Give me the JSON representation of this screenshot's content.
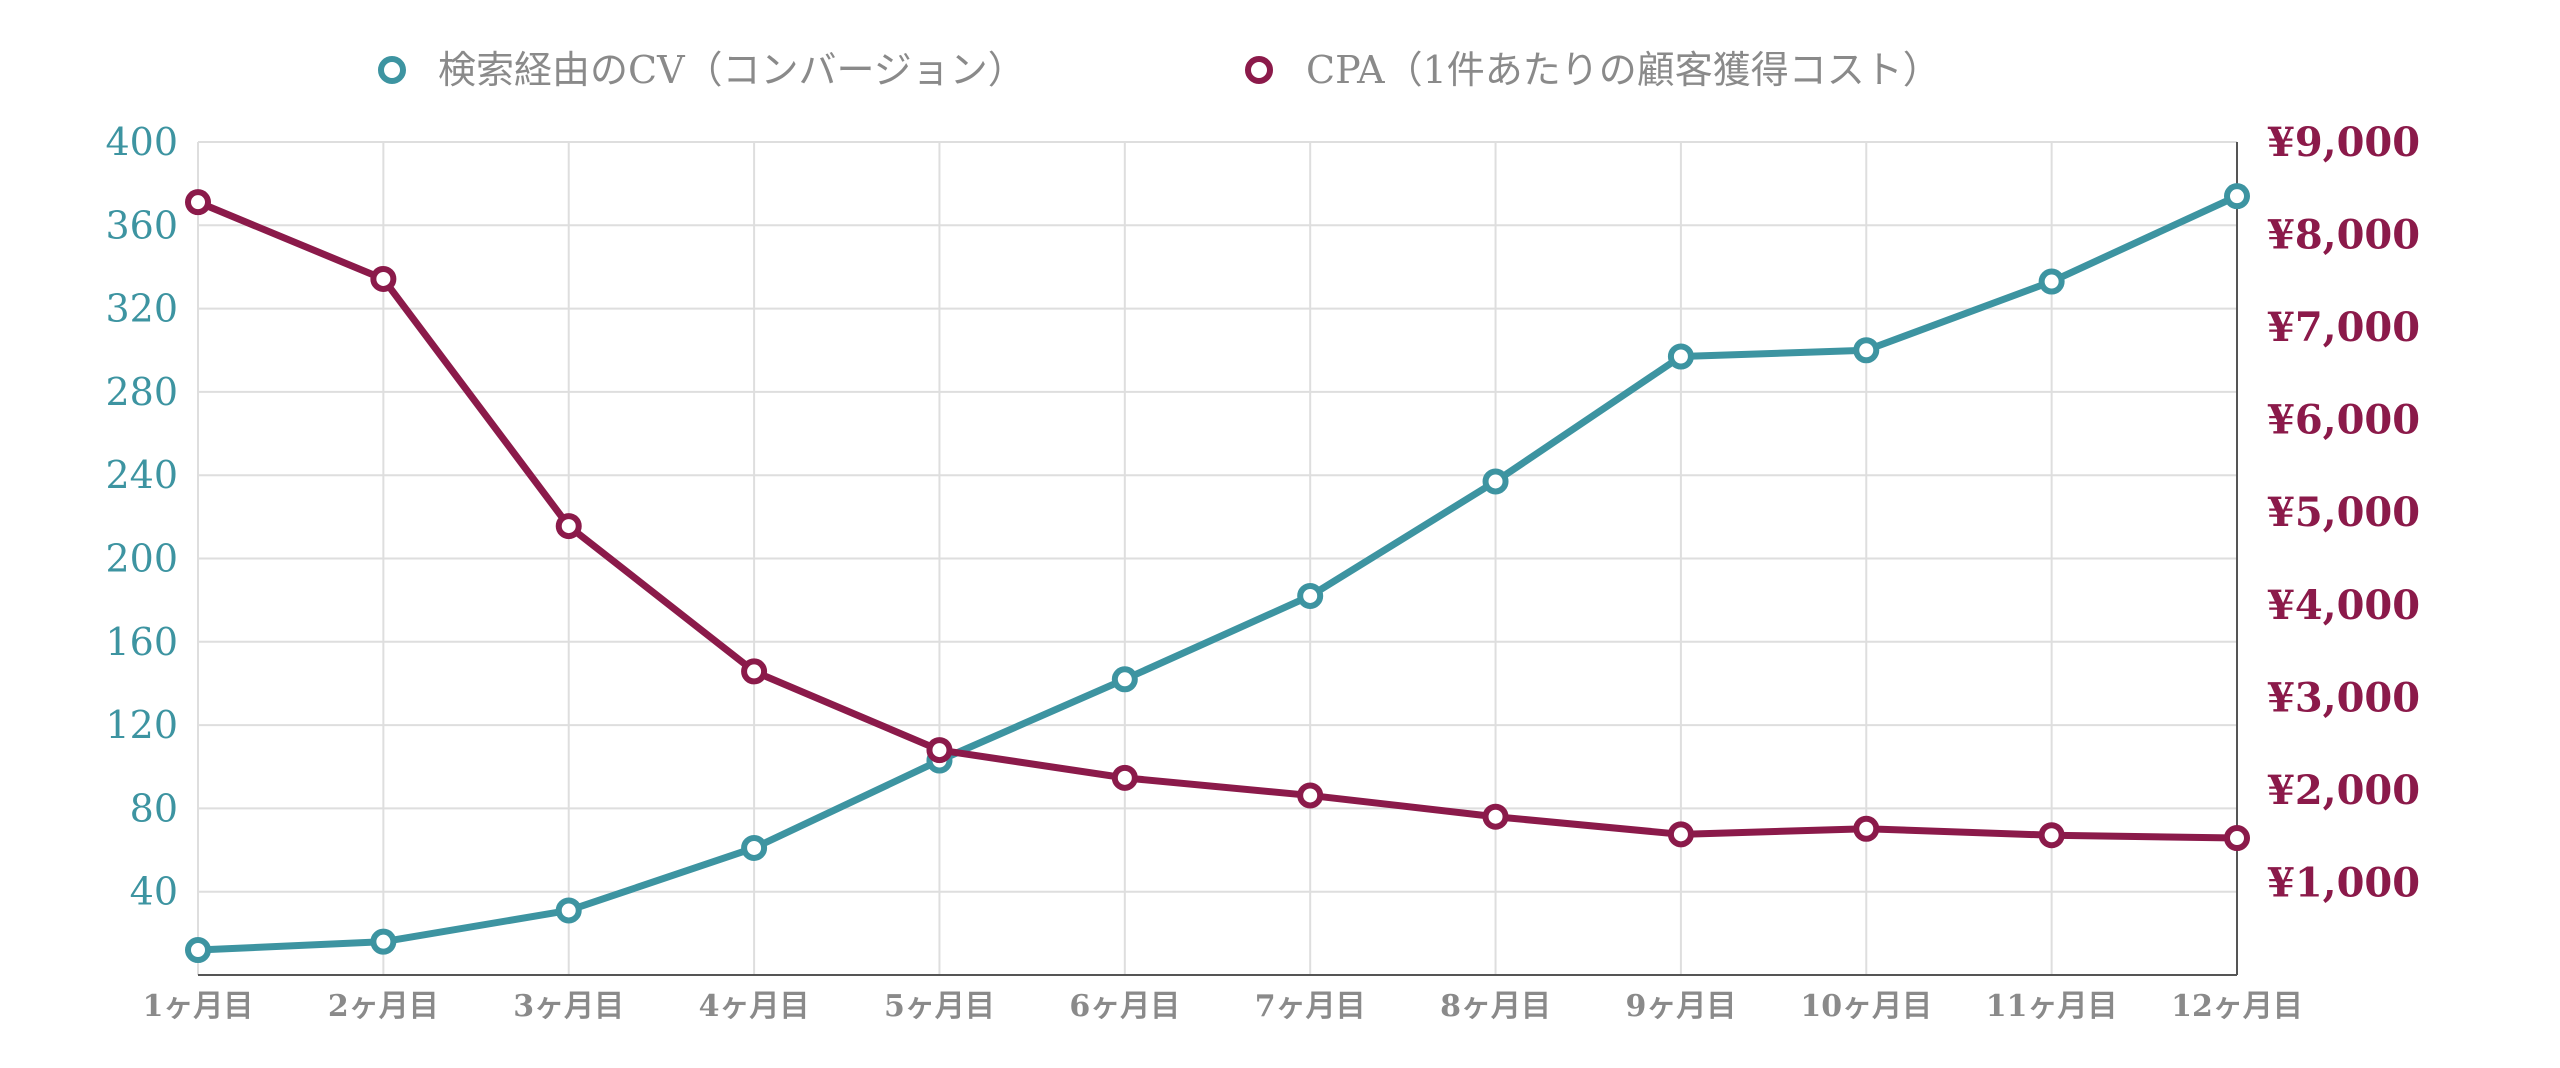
{
  "chart_data": {
    "type": "line",
    "categories": [
      "1ヶ月目",
      "2ヶ月目",
      "3ヶ月目",
      "4ヶ月目",
      "5ヶ月目",
      "6ヶ月目",
      "7ヶ月目",
      "8ヶ月目",
      "9ヶ月目",
      "10ヶ月目",
      "11ヶ月目",
      "12ヶ月目"
    ],
    "series": [
      {
        "name": "検索経由のCV（コンバージョン）",
        "axis": "left",
        "color": "#3d94a1",
        "values": [
          12,
          16,
          31,
          61,
          103,
          142,
          182,
          237,
          297,
          300,
          333,
          374
        ]
      },
      {
        "name": "CPA（1件あたりの顧客獲得コスト）",
        "axis": "right",
        "color": "#8b1a4a",
        "values": [
          8350,
          7520,
          4850,
          3280,
          2430,
          2130,
          1940,
          1710,
          1520,
          1580,
          1510,
          1480
        ]
      }
    ],
    "y_left": {
      "ylim": [
        0,
        400
      ],
      "ticks": [
        40,
        80,
        120,
        160,
        200,
        240,
        280,
        320,
        360,
        400
      ],
      "tick_labels": [
        "40",
        "80",
        "120",
        "160",
        "200",
        "240",
        "280",
        "320",
        "360",
        "400"
      ]
    },
    "y_right": {
      "ylim": [
        0,
        9000
      ],
      "ticks": [
        1000,
        2000,
        3000,
        4000,
        5000,
        6000,
        7000,
        8000,
        9000
      ],
      "tick_labels": [
        "¥1,000",
        "¥2,000",
        "¥3,000",
        "¥4,000",
        "¥5,000",
        "¥6,000",
        "¥7,000",
        "¥8,000",
        "¥9,000"
      ]
    },
    "title": "",
    "xlabel": "",
    "grid": true,
    "legend_position": "top"
  }
}
